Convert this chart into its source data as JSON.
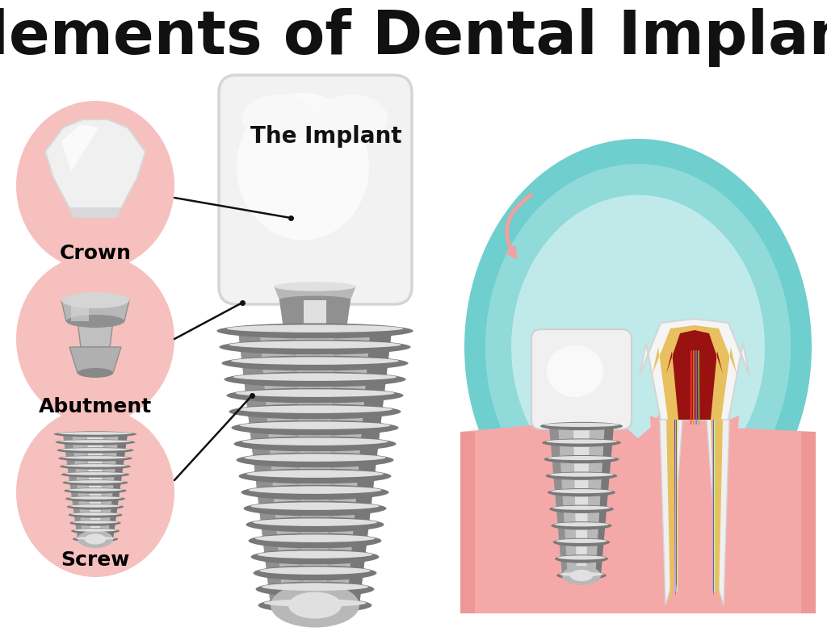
{
  "title": "Elements of Dental Implant",
  "title_fontsize": 54,
  "title_fontweight": "bold",
  "bg_color": "#ffffff",
  "pink_circle_color": "#f5c0be",
  "label_crown": "Crown",
  "label_abutment": "Abutment",
  "label_screw": "Screw",
  "label_implant": "The Implant",
  "label_fontsize": 18,
  "label_fontweight": "bold",
  "teal_dark": "#6fcece",
  "teal_mid": "#90dada",
  "teal_light": "#c0eaea",
  "bone_color": "#e8c48a",
  "bone_dot_color": "#c8955a",
  "gum_color": "#f5a8a8",
  "gum_dark": "#e88888",
  "crown_gray1": "#e8e8e8",
  "crown_gray2": "#d0d0d0",
  "screw_light": "#e0e0e0",
  "screw_mid": "#b8b8b8",
  "screw_dark": "#909090",
  "screw_shadow": "#787878"
}
